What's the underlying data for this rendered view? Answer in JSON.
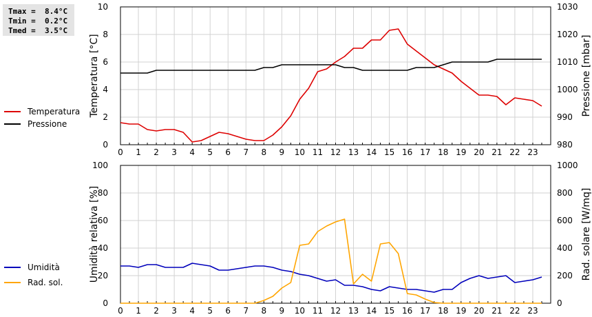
{
  "stats": {
    "tmax": "Tmax =  8.4°C",
    "tmin": "Tmin =  0.2°C",
    "tmed": "Tmed =  3.5°C"
  },
  "legend": {
    "top": [
      {
        "label": "Temperatura",
        "color": "#dd0000"
      },
      {
        "label": "Pressione",
        "color": "#000000"
      }
    ],
    "bottom": [
      {
        "label": "Umidità",
        "color": "#0000bb"
      },
      {
        "label": "Rad. sol.",
        "color": "#ffa500"
      }
    ]
  },
  "chart_data": [
    {
      "type": "line",
      "title": "",
      "xlabel": "",
      "ylabel": "Temperatura [°C]",
      "y2label": "Pressione [mbar]",
      "xlim": [
        0,
        24
      ],
      "ylim": [
        0,
        10
      ],
      "y2lim": [
        980,
        1030
      ],
      "xticks": [
        0,
        1,
        2,
        3,
        4,
        5,
        6,
        7,
        8,
        9,
        10,
        11,
        12,
        13,
        14,
        15,
        16,
        17,
        18,
        19,
        20,
        21,
        22,
        23
      ],
      "yticks": [
        0,
        2,
        4,
        6,
        8,
        10
      ],
      "y2ticks": [
        980,
        990,
        1000,
        1010,
        1020,
        1030
      ],
      "grid": true,
      "legend": "left",
      "series": [
        {
          "name": "Temperatura",
          "axis": "left",
          "color": "#dd0000",
          "x": [
            0,
            0.5,
            1,
            1.5,
            2,
            2.5,
            3,
            3.5,
            4,
            4.5,
            5,
            5.5,
            6,
            6.5,
            7,
            7.5,
            8,
            8.5,
            9,
            9.5,
            10,
            10.5,
            11,
            11.5,
            12,
            12.5,
            13,
            13.5,
            14,
            14.5,
            15,
            15.5,
            16,
            16.5,
            17,
            17.5,
            18,
            18.5,
            19,
            19.5,
            20,
            20.5,
            21,
            21.5,
            22,
            22.5,
            23,
            23.5
          ],
          "y": [
            1.6,
            1.5,
            1.5,
            1.1,
            1.0,
            1.1,
            1.1,
            0.9,
            0.2,
            0.3,
            0.6,
            0.9,
            0.8,
            0.6,
            0.4,
            0.3,
            0.3,
            0.7,
            1.3,
            2.1,
            3.3,
            4.1,
            5.3,
            5.5,
            6.0,
            6.4,
            7.0,
            7.0,
            7.6,
            7.6,
            8.3,
            8.4,
            7.3,
            6.8,
            6.3,
            5.8,
            5.5,
            5.2,
            4.6,
            4.1,
            3.6,
            3.6,
            3.5,
            2.9,
            3.4,
            3.3,
            3.2,
            2.8
          ]
        },
        {
          "name": "Pressione",
          "axis": "right",
          "color": "#000000",
          "x": [
            0,
            1.5,
            2,
            7.5,
            8,
            8.5,
            9,
            12,
            12.5,
            13,
            13.5,
            14,
            16,
            16.5,
            17.5,
            18,
            18.5,
            20.5,
            21,
            23.5
          ],
          "y": [
            1006,
            1006,
            1007,
            1007,
            1008,
            1008,
            1009,
            1009,
            1008,
            1008,
            1007,
            1007,
            1007,
            1008,
            1008,
            1009,
            1010,
            1010,
            1011,
            1011
          ]
        }
      ]
    },
    {
      "type": "line",
      "title": "",
      "xlabel": "",
      "ylabel": "Umidità relativa [%]",
      "y2label": "Rad. solare [W/mq]",
      "xlim": [
        0,
        24
      ],
      "ylim": [
        0,
        100
      ],
      "y2lim": [
        0,
        1000
      ],
      "xticks": [
        0,
        1,
        2,
        3,
        4,
        5,
        6,
        7,
        8,
        9,
        10,
        11,
        12,
        13,
        14,
        15,
        16,
        17,
        18,
        19,
        20,
        21,
        22,
        23
      ],
      "yticks": [
        0,
        20,
        40,
        60,
        80,
        100
      ],
      "y2ticks": [
        0,
        200,
        400,
        600,
        800,
        1000
      ],
      "grid": true,
      "legend": "left",
      "series": [
        {
          "name": "Umidità",
          "axis": "left",
          "color": "#0000bb",
          "x": [
            0,
            0.5,
            1,
            1.5,
            2,
            2.5,
            3,
            3.5,
            4,
            4.5,
            5,
            5.5,
            6,
            6.5,
            7,
            7.5,
            8,
            8.5,
            9,
            9.5,
            10,
            10.5,
            11,
            11.5,
            12,
            12.5,
            13,
            13.5,
            14,
            14.5,
            15,
            15.5,
            16,
            16.5,
            17,
            17.5,
            18,
            18.5,
            19,
            19.5,
            20,
            20.5,
            21,
            21.5,
            22,
            22.5,
            23,
            23.5
          ],
          "y": [
            27,
            27,
            26,
            28,
            28,
            26,
            26,
            26,
            29,
            28,
            27,
            24,
            24,
            25,
            26,
            27,
            27,
            26,
            24,
            23,
            21,
            20,
            18,
            16,
            17,
            13,
            13,
            12,
            10,
            9,
            12,
            11,
            10,
            10,
            9,
            8,
            10,
            10,
            15,
            18,
            20,
            18,
            19,
            20,
            15,
            16,
            17,
            19
          ]
        },
        {
          "name": "Rad. sol.",
          "axis": "right",
          "color": "#ffa500",
          "x": [
            0,
            7.5,
            8,
            8.5,
            9,
            9.5,
            10,
            10.5,
            11,
            11.5,
            12,
            12.5,
            13,
            13.5,
            14,
            14.5,
            15,
            15.5,
            16,
            16.5,
            17,
            17.5,
            18,
            23.5
          ],
          "y": [
            0,
            0,
            20,
            50,
            110,
            150,
            420,
            430,
            520,
            560,
            590,
            610,
            140,
            210,
            160,
            430,
            440,
            360,
            70,
            60,
            30,
            5,
            0,
            0
          ]
        }
      ]
    }
  ]
}
